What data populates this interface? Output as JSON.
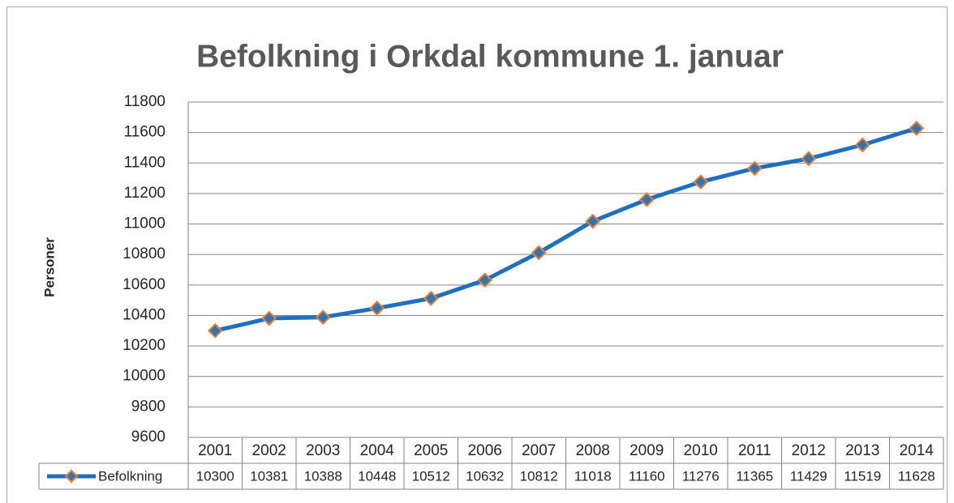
{
  "chart_data": {
    "type": "line",
    "title": "Befolkning i Orkdal kommune 1. januar",
    "y_label": "Personer",
    "categories": [
      "2001",
      "2002",
      "2003",
      "2004",
      "2005",
      "2006",
      "2007",
      "2008",
      "2009",
      "2010",
      "2011",
      "2012",
      "2013",
      "2014"
    ],
    "series": [
      {
        "name": "Befolkning",
        "color": "#1f6fc0",
        "marker_color": "#ed7d31",
        "values": [
          10300,
          10381,
          10388,
          10448,
          10512,
          10632,
          10812,
          11018,
          11160,
          11276,
          11365,
          11429,
          11519,
          11628
        ]
      }
    ],
    "ylim": [
      9600,
      11800
    ],
    "yticks": [
      9600,
      9800,
      10000,
      10200,
      10400,
      10600,
      10800,
      11000,
      11200,
      11400,
      11600,
      11800
    ],
    "grid": true
  }
}
